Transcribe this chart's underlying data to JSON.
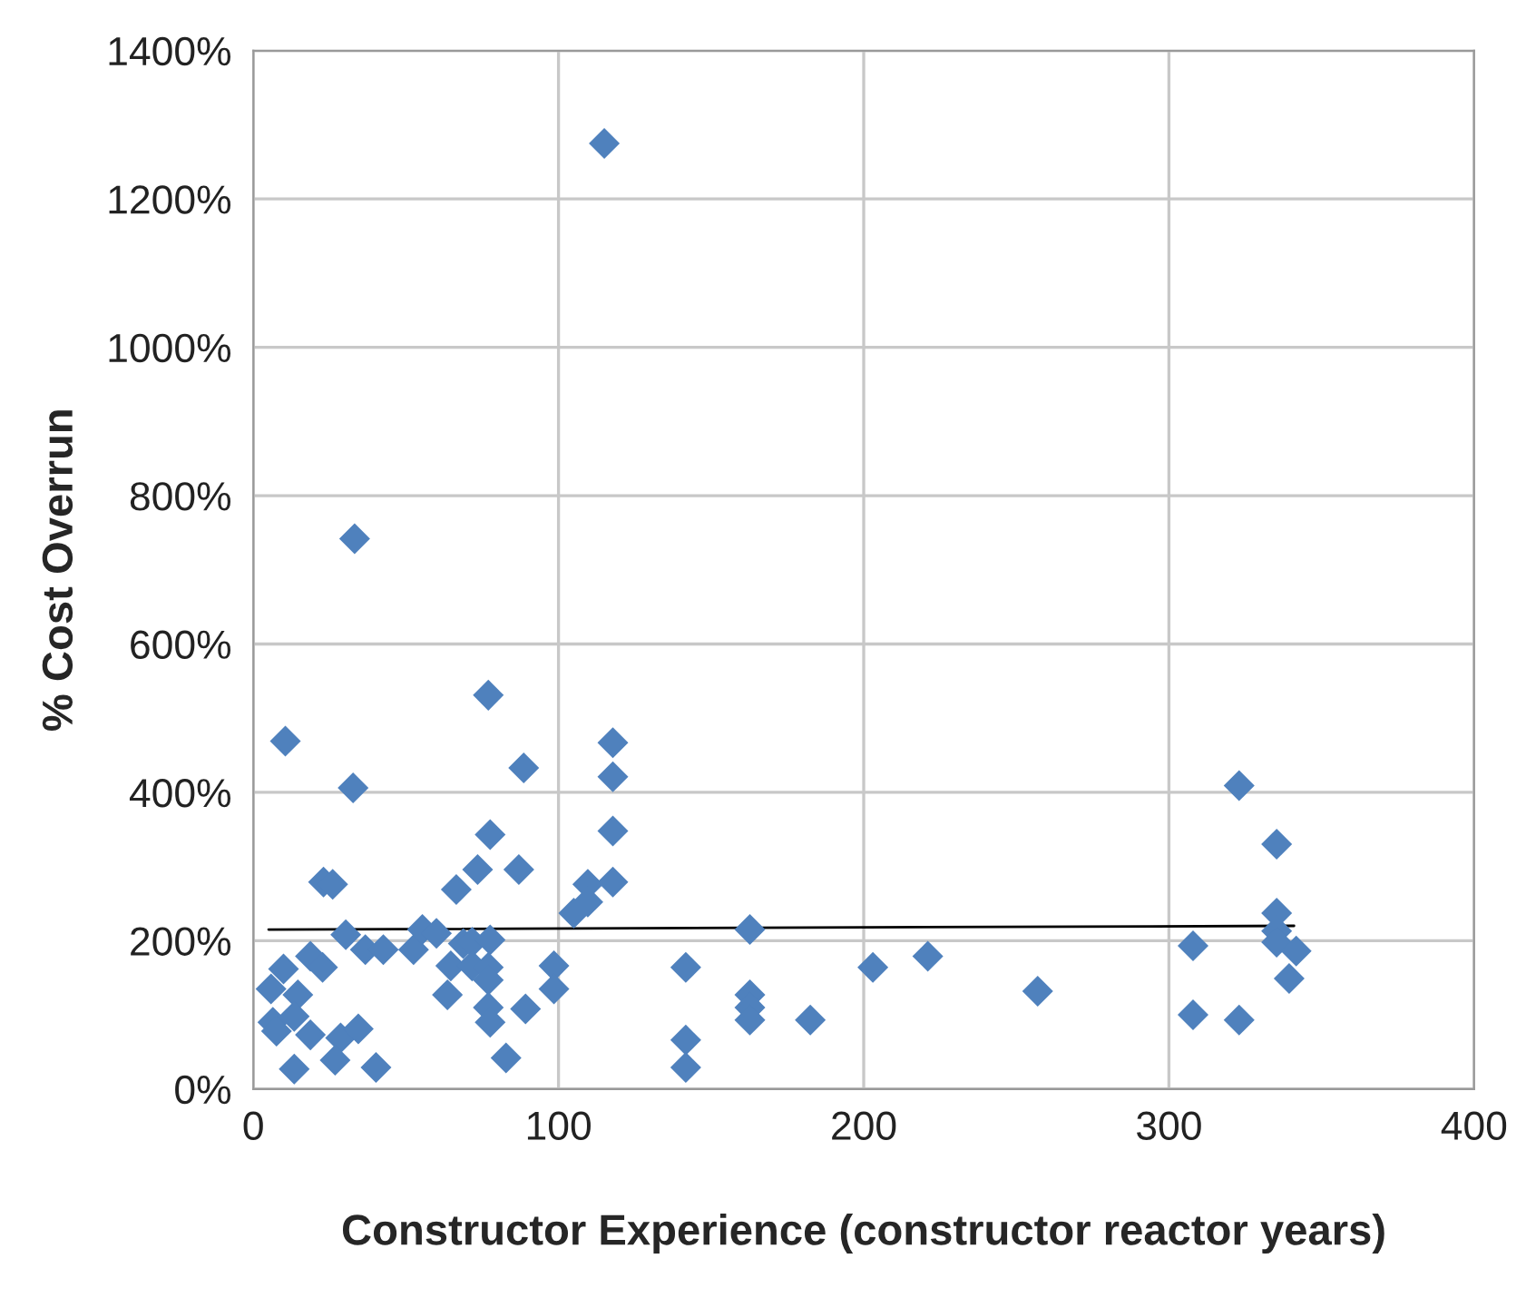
{
  "chart_data": {
    "type": "scatter",
    "xlabel": "Constructor Experience (constructor reactor years)",
    "ylabel": "% Cost Overrun",
    "xlim": [
      0,
      400
    ],
    "xticks": [
      0,
      100,
      200,
      300,
      400
    ],
    "ylim": [
      0,
      1400
    ],
    "yticks": [
      {
        "value": 0,
        "label": "0%"
      },
      {
        "value": 200,
        "label": "200%"
      },
      {
        "value": 400,
        "label": "400%"
      },
      {
        "value": 600,
        "label": "600%"
      },
      {
        "value": 800,
        "label": "800%"
      },
      {
        "value": 1000,
        "label": "1000%"
      },
      {
        "value": 1200,
        "label": "1200%"
      },
      {
        "value": 1400,
        "label": "1400%"
      }
    ],
    "grid": true,
    "series": [
      {
        "marker": "diamond",
        "color": "#4f81bd",
        "x": [
          10.5,
          77,
          88.6,
          32.7,
          77.6,
          23,
          26,
          73.5,
          87,
          66.5,
          30.3,
          36.7,
          42.6,
          52.5,
          55.4,
          60,
          68.8,
          71.7,
          77.6,
          18.7,
          22.7,
          9.9,
          5.8,
          14.6,
          64.7,
          71.7,
          77,
          77,
          98.5,
          98.5,
          63.6,
          6.4,
          7.6,
          13.4,
          18.7,
          28.6,
          34.4,
          77,
          77.6,
          89.2,
          13.4,
          26.8,
          40.2,
          82.8,
          33.2,
          115,
          117.8,
          117.8,
          117.8,
          109.6,
          109.6,
          117.8,
          105,
          162.7,
          141.7,
          162.7,
          162.7,
          162.7,
          182.5,
          141.7,
          141.7,
          203,
          221,
          257,
          307.9,
          307.9,
          323,
          323,
          335.3,
          335.3,
          335.3,
          335.3,
          341.7,
          339.4
        ],
        "values": [
          469,
          531,
          433,
          406,
          343,
          279,
          276,
          296,
          296,
          269,
          208,
          188,
          188,
          188,
          215,
          210,
          196,
          198,
          201,
          179,
          164,
          162,
          135,
          127,
          166,
          166,
          164,
          147,
          166,
          135,
          127,
          90,
          78,
          98,
          73,
          69,
          81,
          110,
          90,
          108,
          27,
          39,
          29,
          42,
          742,
          1275,
          467,
          421,
          348,
          276,
          252,
          279,
          237,
          215,
          164,
          127,
          110,
          93,
          93,
          66,
          29,
          164,
          179,
          132,
          193,
          100,
          409,
          93,
          330,
          237,
          213,
          198,
          186,
          149
        ]
      },
      {
        "type": "line",
        "marker": "none",
        "color": "#000000",
        "x": [
          5,
          341
        ],
        "values": [
          215,
          220
        ]
      }
    ]
  }
}
